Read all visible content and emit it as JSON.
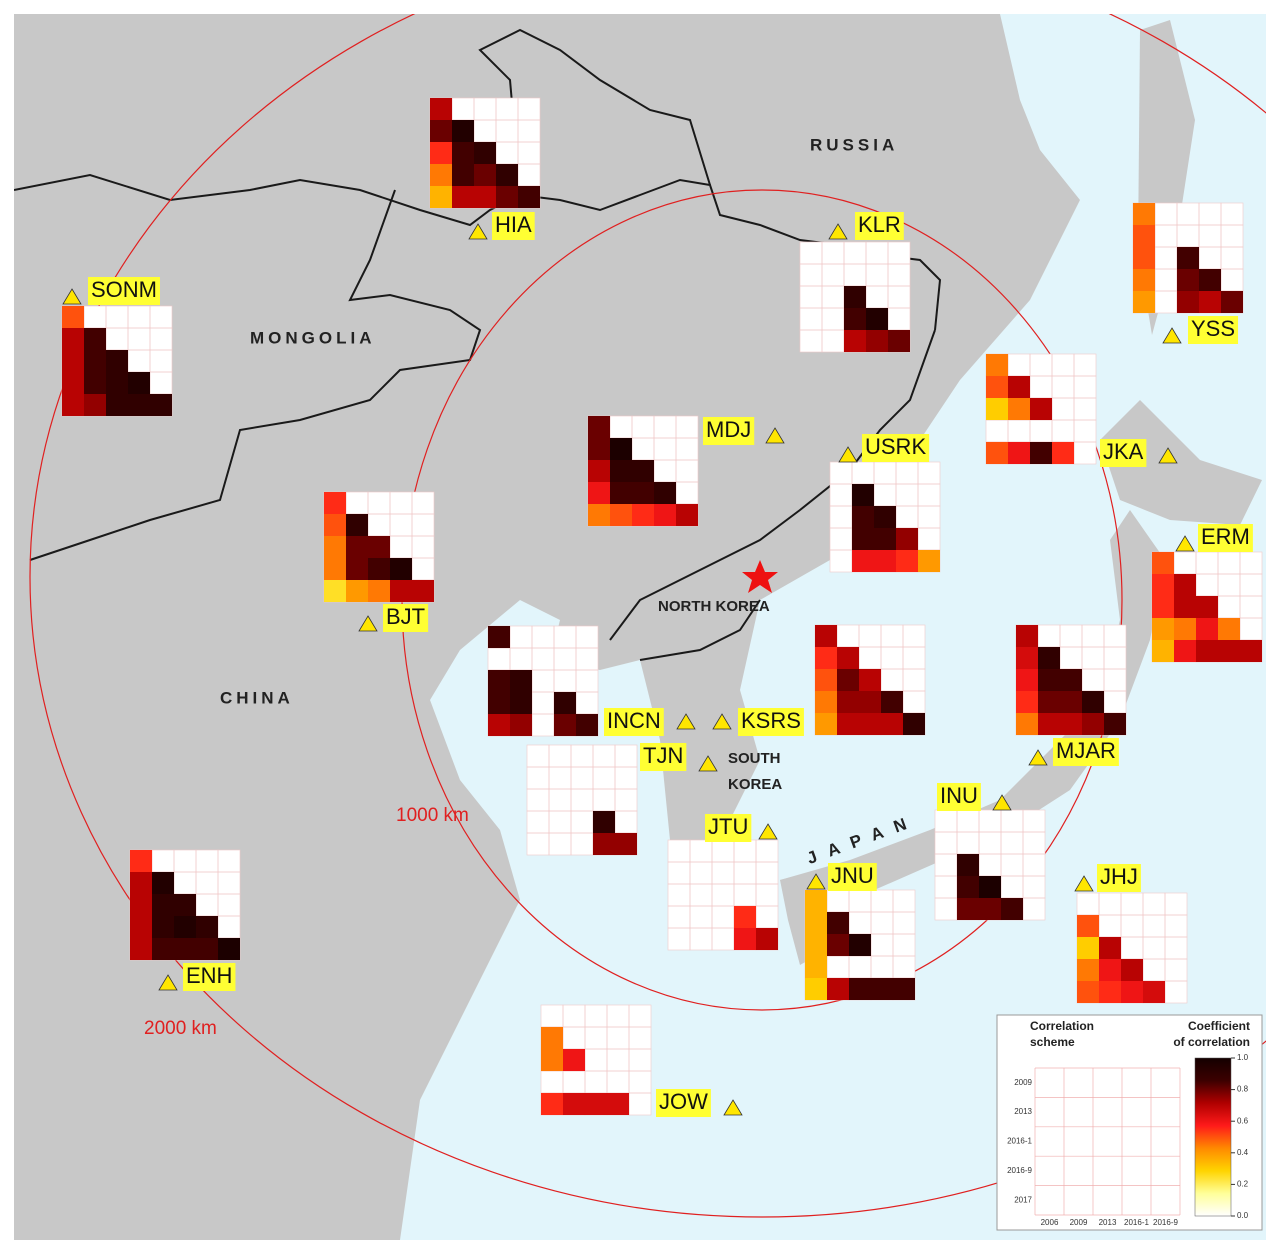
{
  "map_labels": {
    "russia": "RUSSIA",
    "mongolia": "MONGOLIA",
    "china": "CHINA",
    "north_korea": "NORTH KOREA",
    "south_korea": [
      "SOUTH",
      "KOREA"
    ],
    "japan": "JAPAN"
  },
  "distance_labels": [
    "1000 km",
    "2000 km"
  ],
  "colormap": [
    "#ffffff",
    "#ffff99",
    "#ffd400",
    "#ff8a00",
    "#ff1a1a",
    "#b00000",
    "#3c0000",
    "#140000"
  ],
  "stations": [
    {
      "name": "HIA",
      "values": [
        [
          0.7
        ],
        [
          0.8,
          0.95
        ],
        [
          0.55,
          0.85,
          0.9
        ],
        [
          0.45,
          0.85,
          0.8,
          0.9
        ],
        [
          0.35,
          0.7,
          0.7,
          0.8,
          0.85
        ]
      ]
    },
    {
      "name": "SONM",
      "values": [
        [
          0.5
        ],
        [
          0.7,
          0.85
        ],
        [
          0.7,
          0.85,
          0.9
        ],
        [
          0.7,
          0.85,
          0.9,
          0.95
        ],
        [
          0.7,
          0.75,
          0.9,
          0.9,
          0.9
        ]
      ]
    },
    {
      "name": "KLR",
      "values": [
        [
          null
        ],
        [
          null,
          null
        ],
        [
          null,
          null,
          0.9
        ],
        [
          null,
          null,
          0.85,
          0.95
        ],
        [
          null,
          null,
          0.7,
          0.75,
          0.8
        ]
      ]
    },
    {
      "name": "YSS",
      "values": [
        [
          0.45
        ],
        [
          0.5,
          null
        ],
        [
          0.5,
          null,
          0.85
        ],
        [
          0.45,
          null,
          0.8,
          0.85
        ],
        [
          0.4,
          null,
          0.75,
          0.7,
          0.8
        ]
      ]
    },
    {
      "name": "JKA",
      "values": [
        [
          0.45
        ],
        [
          0.5,
          0.7
        ],
        [
          0.3,
          0.45,
          0.7
        ],
        [
          null,
          null,
          null,
          null
        ],
        [
          0.5,
          0.6,
          0.85,
          0.55,
          null
        ]
      ]
    },
    {
      "name": "MDJ",
      "values": [
        [
          0.8
        ],
        [
          0.8,
          0.97
        ],
        [
          0.7,
          0.9,
          0.9
        ],
        [
          0.6,
          0.85,
          0.85,
          0.9
        ],
        [
          0.45,
          0.5,
          0.55,
          0.6,
          0.7
        ]
      ]
    },
    {
      "name": "USRK",
      "values": [
        [
          null
        ],
        [
          null,
          0.95
        ],
        [
          null,
          0.85,
          0.9
        ],
        [
          null,
          0.85,
          0.85,
          0.75
        ],
        [
          null,
          0.6,
          0.6,
          0.55,
          0.4
        ]
      ]
    },
    {
      "name": "BJT",
      "values": [
        [
          0.55
        ],
        [
          0.5,
          0.9
        ],
        [
          0.45,
          0.8,
          0.8
        ],
        [
          0.45,
          0.8,
          0.85,
          0.95
        ],
        [
          0.25,
          0.4,
          0.45,
          0.7,
          0.7
        ]
      ]
    },
    {
      "name": "ERM",
      "values": [
        [
          0.5
        ],
        [
          0.55,
          0.7
        ],
        [
          0.55,
          0.7,
          0.7
        ],
        [
          0.4,
          0.45,
          0.6,
          0.45
        ],
        [
          0.35,
          0.6,
          0.7,
          0.7,
          0.7
        ]
      ]
    },
    {
      "name": "INCN",
      "values": [
        [
          0.85
        ],
        [
          null,
          null
        ],
        [
          0.85,
          0.9,
          null
        ],
        [
          0.85,
          0.9,
          null,
          0.9
        ],
        [
          0.7,
          0.75,
          null,
          0.8,
          0.85
        ]
      ]
    },
    {
      "name": "KSRS",
      "values": [
        [
          0.7
        ],
        [
          0.55,
          0.7
        ],
        [
          0.5,
          0.8,
          0.7
        ],
        [
          0.45,
          0.75,
          0.75,
          0.85
        ],
        [
          0.4,
          0.7,
          0.7,
          0.7,
          0.9
        ]
      ]
    },
    {
      "name": "MJAR",
      "values": [
        [
          0.7
        ],
        [
          0.65,
          0.9
        ],
        [
          0.6,
          0.85,
          0.85
        ],
        [
          0.55,
          0.8,
          0.8,
          0.9
        ],
        [
          0.45,
          0.7,
          0.7,
          0.75,
          0.85
        ]
      ]
    },
    {
      "name": "TJN",
      "values": [
        [
          null
        ],
        [
          null,
          null
        ],
        [
          null,
          null,
          null
        ],
        [
          null,
          null,
          null,
          0.9
        ],
        [
          null,
          null,
          null,
          0.75,
          0.75
        ]
      ]
    },
    {
      "name": "JTU",
      "values": [
        [
          null
        ],
        [
          null,
          null
        ],
        [
          null,
          null,
          null
        ],
        [
          null,
          null,
          null,
          0.55
        ],
        [
          null,
          null,
          null,
          0.6,
          0.7
        ]
      ]
    },
    {
      "name": "JNU",
      "values": [
        [
          0.35
        ],
        [
          0.35,
          0.85
        ],
        [
          0.35,
          0.8,
          0.95
        ],
        [
          0.35,
          null,
          null,
          null
        ],
        [
          0.3,
          0.7,
          0.85,
          0.85,
          0.85
        ]
      ]
    },
    {
      "name": "INU",
      "values": [
        [
          null
        ],
        [
          null,
          null
        ],
        [
          null,
          0.9,
          null
        ],
        [
          null,
          0.85,
          0.97,
          null
        ],
        [
          null,
          0.8,
          0.8,
          0.85,
          null
        ]
      ]
    },
    {
      "name": "JHJ",
      "values": [
        [
          null
        ],
        [
          0.5,
          null
        ],
        [
          0.3,
          0.7,
          null
        ],
        [
          0.45,
          0.6,
          0.7,
          null
        ],
        [
          0.5,
          0.55,
          0.6,
          0.65,
          null
        ]
      ]
    },
    {
      "name": "ENH",
      "values": [
        [
          0.55
        ],
        [
          0.7,
          0.95
        ],
        [
          0.7,
          0.9,
          0.9
        ],
        [
          0.7,
          0.9,
          0.95,
          0.9
        ],
        [
          0.7,
          0.85,
          0.85,
          0.85,
          0.97
        ]
      ]
    },
    {
      "name": "JOW",
      "values": [
        [
          null
        ],
        [
          0.45,
          null
        ],
        [
          0.45,
          0.6,
          null
        ],
        [
          null,
          null,
          null,
          null
        ],
        [
          0.55,
          0.65,
          0.65,
          0.65,
          null
        ]
      ]
    }
  ],
  "legend": {
    "scheme_title": [
      "Correlation",
      "scheme"
    ],
    "colorbar_title": [
      "Coefficient",
      "of correlation"
    ],
    "rows": [
      "2009",
      "2013",
      "2016-1",
      "2016-9",
      "2017"
    ],
    "columns": [
      "2006",
      "2009",
      "2013",
      "2016-1",
      "2016-9"
    ],
    "ticks": [
      {
        "value": 0,
        "label": "0.0"
      },
      {
        "value": 0.2,
        "label": "0.2"
      },
      {
        "value": 0.4,
        "label": "0.4"
      },
      {
        "value": 0.6,
        "label": "0.6"
      },
      {
        "value": 0.8,
        "label": "0.8"
      },
      {
        "value": 1,
        "label": "1.0"
      }
    ]
  }
}
